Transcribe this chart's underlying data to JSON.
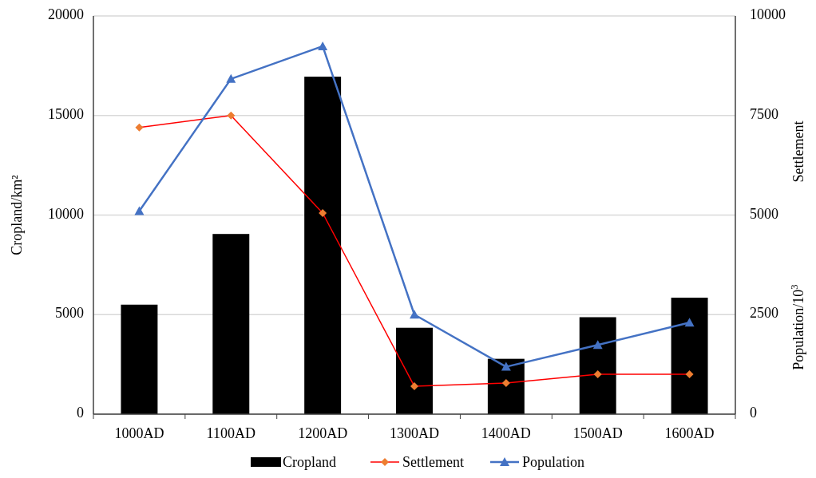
{
  "chart_data": {
    "type": "bar",
    "categories": [
      "1000AD",
      "1100AD",
      "1200AD",
      "1300AD",
      "1400AD",
      "1500AD",
      "1600AD"
    ],
    "series": [
      {
        "name": "Cropland",
        "color": "#000000",
        "values": [
          5500,
          9050,
          16950,
          4340,
          2780,
          4870,
          5850
        ]
      },
      {
        "name": "Settlement",
        "type": "line",
        "axis": "y2",
        "color": "#ff0000",
        "colors": [
          "#ed7d31",
          "#ed7d31",
          "#ed7d31",
          "#ed7d31",
          "#ed7d31",
          "#ed7d31",
          "#ed7d31"
        ],
        "marker": "diamond",
        "values": [
          7200,
          7500,
          5050,
          700,
          780,
          1000,
          1000
        ]
      },
      {
        "name": "Population",
        "type": "line",
        "axis": "y2",
        "color": "#4472c4",
        "marker": "triangle",
        "values": [
          5100,
          8420,
          9240,
          2500,
          1190,
          1740,
          2300
        ]
      }
    ],
    "ylabel": "Cropland/km²",
    "y2label": "Settlement",
    "annotations": [
      "Population/10$^{3}$"
    ],
    "ylim": [
      0,
      20000
    ],
    "yticks": [
      0,
      5000,
      10000,
      15000,
      20000
    ],
    "y2lim": [
      0,
      10000
    ],
    "y2ticks": [
      0,
      2500,
      5000,
      7500,
      10000
    ],
    "grid": "y",
    "legend": "bottom"
  }
}
